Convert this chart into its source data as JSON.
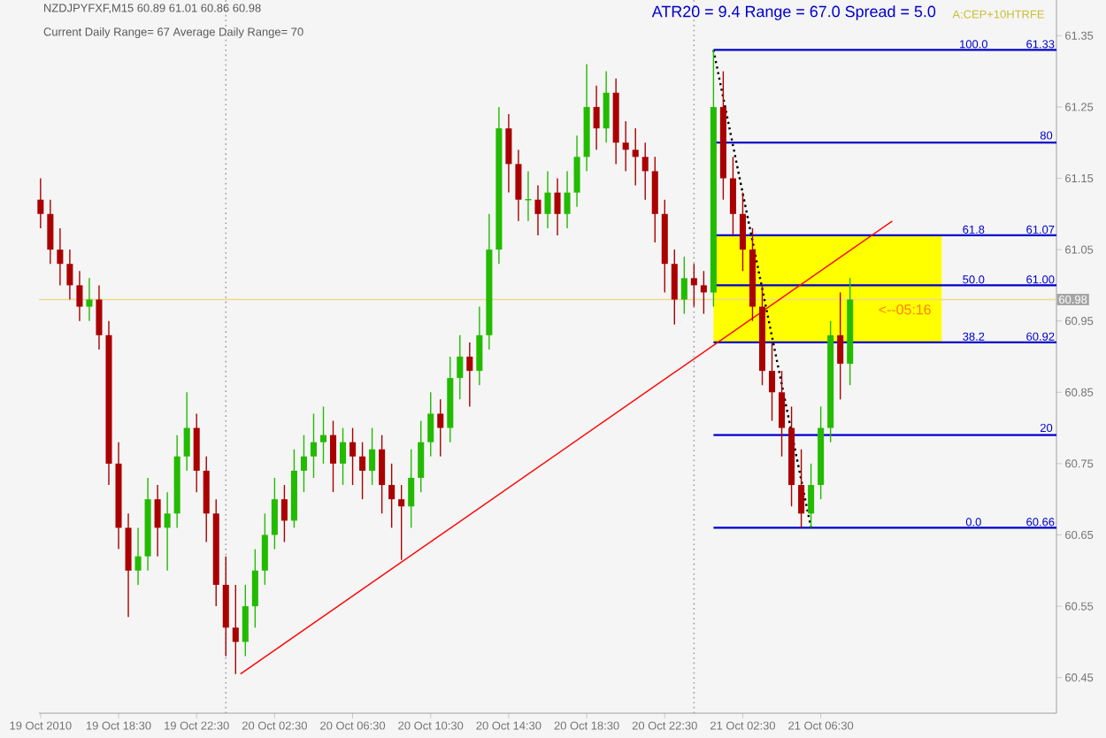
{
  "chart_data": {
    "type": "candlestick",
    "title": "NZDJPYFXF,M15  60.89 61.01 60.86 60.98",
    "subtitle": "Current Daily Range= 67   Average Daily Range= 70",
    "x": [
      "2010-10-19T14:30",
      "2010-10-19T15:00",
      "2010-10-19T15:30",
      "2010-10-19T16:00",
      "2010-10-19T16:30",
      "2010-10-19T17:00",
      "2010-10-19T17:30",
      "2010-10-19T18:00",
      "2010-10-19T18:30",
      "2010-10-19T19:00",
      "2010-10-19T19:30",
      "2010-10-19T20:00",
      "2010-10-19T20:30",
      "2010-10-19T21:00",
      "2010-10-19T21:30",
      "2010-10-19T22:00",
      "2010-10-19T22:30",
      "2010-10-19T23:00",
      "2010-10-19T23:30",
      "2010-10-20T00:00",
      "2010-10-20T00:30",
      "2010-10-20T01:00",
      "2010-10-20T01:30",
      "2010-10-20T02:00",
      "2010-10-20T02:30",
      "2010-10-20T03:00",
      "2010-10-20T03:30",
      "2010-10-20T04:00",
      "2010-10-20T04:30",
      "2010-10-20T05:00",
      "2010-10-20T05:30",
      "2010-10-20T06:00",
      "2010-10-20T06:30",
      "2010-10-20T07:00",
      "2010-10-20T07:30",
      "2010-10-20T08:00",
      "2010-10-20T08:30",
      "2010-10-20T09:00",
      "2010-10-20T09:30",
      "2010-10-20T10:00",
      "2010-10-20T10:30",
      "2010-10-20T11:00",
      "2010-10-20T11:30",
      "2010-10-20T12:00",
      "2010-10-20T12:30",
      "2010-10-20T13:00",
      "2010-10-20T13:30",
      "2010-10-20T14:00",
      "2010-10-20T14:30",
      "2010-10-20T15:00",
      "2010-10-20T15:30",
      "2010-10-20T16:00",
      "2010-10-20T16:30",
      "2010-10-20T17:00",
      "2010-10-20T17:30",
      "2010-10-20T18:00",
      "2010-10-20T18:30",
      "2010-10-20T19:00",
      "2010-10-20T19:30",
      "2010-10-20T20:00",
      "2010-10-20T20:30",
      "2010-10-20T21:00",
      "2010-10-20T21:30",
      "2010-10-20T22:00",
      "2010-10-20T22:30",
      "2010-10-20T23:00",
      "2010-10-20T23:30",
      "2010-10-21T00:00",
      "2010-10-21T00:30",
      "2010-10-21T01:00",
      "2010-10-21T01:30",
      "2010-10-21T02:00",
      "2010-10-21T02:30",
      "2010-10-21T03:00",
      "2010-10-21T03:30",
      "2010-10-21T04:00",
      "2010-10-21T04:30",
      "2010-10-21T05:00",
      "2010-10-21T05:30",
      "2010-10-21T06:00",
      "2010-10-21T06:30",
      "2010-10-21T07:00",
      "2010-10-21T07:30",
      "2010-10-21T08:00"
    ],
    "ohlc": [
      [
        61.12,
        61.15,
        61.08,
        61.1
      ],
      [
        61.1,
        61.12,
        61.03,
        61.05
      ],
      [
        61.05,
        61.08,
        61.0,
        61.03
      ],
      [
        61.03,
        61.05,
        60.98,
        61.0
      ],
      [
        61.0,
        61.02,
        60.95,
        60.97
      ],
      [
        60.97,
        61.01,
        60.95,
        60.98
      ],
      [
        60.98,
        61.0,
        60.91,
        60.93
      ],
      [
        60.93,
        60.95,
        60.72,
        60.75
      ],
      [
        60.75,
        60.78,
        60.63,
        60.66
      ],
      [
        60.66,
        60.68,
        60.535,
        60.6
      ],
      [
        60.6,
        60.66,
        60.58,
        60.62
      ],
      [
        60.62,
        60.73,
        60.6,
        60.7
      ],
      [
        60.7,
        60.72,
        60.62,
        60.66
      ],
      [
        60.66,
        60.71,
        60.6,
        60.68
      ],
      [
        60.68,
        60.79,
        60.66,
        60.76
      ],
      [
        60.76,
        60.85,
        60.74,
        60.8
      ],
      [
        60.8,
        60.82,
        60.71,
        60.74
      ],
      [
        60.74,
        60.76,
        60.64,
        60.68
      ],
      [
        60.68,
        60.7,
        60.55,
        60.58
      ],
      [
        60.58,
        60.62,
        60.48,
        60.52
      ],
      [
        60.52,
        60.58,
        60.455,
        60.5
      ],
      [
        60.5,
        60.58,
        60.48,
        60.55
      ],
      [
        60.55,
        60.63,
        60.52,
        60.6
      ],
      [
        60.6,
        60.68,
        60.58,
        60.65
      ],
      [
        60.65,
        60.73,
        60.63,
        60.7
      ],
      [
        60.7,
        60.72,
        60.64,
        60.67
      ],
      [
        60.67,
        60.77,
        60.66,
        60.74
      ],
      [
        60.74,
        60.79,
        60.71,
        60.76
      ],
      [
        60.76,
        60.82,
        60.73,
        60.78
      ],
      [
        60.78,
        60.83,
        60.75,
        60.79
      ],
      [
        60.79,
        60.81,
        60.71,
        60.75
      ],
      [
        60.75,
        60.8,
        60.72,
        60.78
      ],
      [
        60.78,
        60.8,
        60.72,
        60.76
      ],
      [
        60.76,
        60.78,
        60.7,
        60.74
      ],
      [
        60.74,
        60.8,
        60.72,
        60.77
      ],
      [
        60.77,
        60.79,
        60.68,
        60.72
      ],
      [
        60.72,
        60.75,
        60.66,
        60.7
      ],
      [
        60.7,
        60.72,
        60.615,
        60.69
      ],
      [
        60.69,
        60.77,
        60.66,
        60.73
      ],
      [
        60.73,
        60.81,
        60.71,
        60.78
      ],
      [
        60.78,
        60.85,
        60.76,
        60.82
      ],
      [
        60.82,
        60.84,
        60.76,
        60.8
      ],
      [
        60.8,
        60.9,
        60.78,
        60.87
      ],
      [
        60.87,
        60.93,
        60.84,
        60.9
      ],
      [
        60.9,
        60.92,
        60.83,
        60.88
      ],
      [
        60.88,
        60.97,
        60.86,
        60.93
      ],
      [
        60.93,
        61.1,
        60.91,
        61.05
      ],
      [
        61.05,
        61.25,
        61.03,
        61.22
      ],
      [
        61.22,
        61.24,
        61.13,
        61.17
      ],
      [
        61.17,
        61.19,
        61.09,
        61.12
      ],
      [
        61.12,
        61.16,
        61.09,
        61.12
      ],
      [
        61.12,
        61.14,
        61.07,
        61.1
      ],
      [
        61.1,
        61.16,
        61.08,
        61.13
      ],
      [
        61.13,
        61.15,
        61.07,
        61.1
      ],
      [
        61.1,
        61.16,
        61.08,
        61.13
      ],
      [
        61.13,
        61.21,
        61.11,
        61.18
      ],
      [
        61.18,
        61.31,
        61.16,
        61.25
      ],
      [
        61.25,
        61.28,
        61.19,
        61.22
      ],
      [
        61.22,
        61.3,
        61.2,
        61.27
      ],
      [
        61.27,
        61.29,
        61.17,
        61.2
      ],
      [
        61.2,
        61.23,
        61.16,
        61.19
      ],
      [
        61.19,
        61.22,
        61.14,
        61.18
      ],
      [
        61.18,
        61.2,
        61.12,
        61.16
      ],
      [
        61.16,
        61.18,
        61.06,
        61.1
      ],
      [
        61.1,
        61.12,
        60.99,
        61.03
      ],
      [
        61.03,
        61.05,
        60.945,
        60.98
      ],
      [
        60.98,
        61.04,
        60.96,
        61.01
      ],
      [
        61.01,
        61.03,
        60.97,
        61.0
      ],
      [
        61.0,
        61.02,
        60.96,
        60.99
      ],
      [
        60.99,
        61.33,
        60.97,
        61.25
      ],
      [
        61.25,
        61.3,
        61.12,
        61.15
      ],
      [
        61.15,
        61.18,
        61.07,
        61.1
      ],
      [
        61.1,
        61.13,
        61.02,
        61.05
      ],
      [
        61.05,
        61.08,
        60.95,
        60.97
      ],
      [
        60.97,
        61.0,
        60.86,
        60.88
      ],
      [
        60.88,
        60.92,
        60.81,
        60.85
      ],
      [
        60.85,
        60.88,
        60.76,
        60.8
      ],
      [
        60.8,
        60.83,
        60.69,
        60.72
      ],
      [
        60.72,
        60.77,
        60.66,
        60.68
      ],
      [
        60.68,
        60.75,
        60.66,
        60.72
      ],
      [
        60.72,
        60.83,
        60.7,
        60.8
      ],
      [
        60.8,
        60.95,
        60.78,
        60.93
      ],
      [
        60.93,
        60.99,
        60.84,
        60.89
      ],
      [
        60.89,
        61.01,
        60.86,
        60.98
      ]
    ],
    "colors": [
      "#aa0000",
      "#aa0000",
      "#aa0000",
      "#aa0000",
      "#aa0000",
      "#22bb00",
      "#aa0000",
      "#aa0000",
      "#aa0000",
      "#aa0000",
      "#22bb00",
      "#22bb00",
      "#aa0000",
      "#22bb00",
      "#22bb00",
      "#22bb00",
      "#aa0000",
      "#aa0000",
      "#aa0000",
      "#aa0000",
      "#aa0000",
      "#22bb00",
      "#22bb00",
      "#22bb00",
      "#22bb00",
      "#aa0000",
      "#22bb00",
      "#22bb00",
      "#22bb00",
      "#22bb00",
      "#aa0000",
      "#22bb00",
      "#aa0000",
      "#aa0000",
      "#22bb00",
      "#aa0000",
      "#aa0000",
      "#aa0000",
      "#22bb00",
      "#22bb00",
      "#22bb00",
      "#aa0000",
      "#22bb00",
      "#22bb00",
      "#aa0000",
      "#22bb00",
      "#22bb00",
      "#22bb00",
      "#aa0000",
      "#aa0000",
      "#22bb00",
      "#aa0000",
      "#22bb00",
      "#aa0000",
      "#22bb00",
      "#22bb00",
      "#22bb00",
      "#aa0000",
      "#22bb00",
      "#aa0000",
      "#aa0000",
      "#aa0000",
      "#aa0000",
      "#aa0000",
      "#aa0000",
      "#aa0000",
      "#22bb00",
      "#aa0000",
      "#aa0000",
      "#22bb00",
      "#aa0000",
      "#aa0000",
      "#aa0000",
      "#aa0000",
      "#aa0000",
      "#aa0000",
      "#aa0000",
      "#aa0000",
      "#aa0000",
      "#22bb00",
      "#22bb00",
      "#22bb00",
      "#aa0000",
      "#22bb00"
    ],
    "series": [
      {
        "type": "line",
        "color": "#ff0000",
        "x": [
          "2010-10-20T00:45",
          "2010-10-21T10:10"
        ],
        "values": [
          60.455,
          61.09
        ]
      },
      {
        "type": "line",
        "color": "#000000",
        "line_style": "dotted",
        "x": [
          "2010-10-21T01:00",
          "2010-10-21T06:00"
        ],
        "values": [
          61.33,
          60.66
        ]
      }
    ],
    "xlim": [
      "2010-10-19T14:25",
      "2010-10-21T18:35"
    ],
    "xticks": [
      {
        "value": "2010-10-19T14:30",
        "label": "19 Oct 2010"
      },
      {
        "value": "2010-10-19T18:30",
        "label": "19 Oct 18:30"
      },
      {
        "value": "2010-10-19T22:30",
        "label": "19 Oct 22:30"
      },
      {
        "value": "2010-10-20T02:30",
        "label": "20 Oct 02:30"
      },
      {
        "value": "2010-10-20T06:30",
        "label": "20 Oct 06:30"
      },
      {
        "value": "2010-10-20T10:30",
        "label": "20 Oct 10:30"
      },
      {
        "value": "2010-10-20T14:30",
        "label": "20 Oct 14:30"
      },
      {
        "value": "2010-10-20T18:30",
        "label": "20 Oct 18:30"
      },
      {
        "value": "2010-10-20T22:30",
        "label": "20 Oct 22:30"
      },
      {
        "value": "2010-10-21T02:30",
        "label": "21 Oct 02:30"
      },
      {
        "value": "2010-10-21T06:30",
        "label": "21 Oct 06:30"
      }
    ],
    "ylim": [
      60.4,
      61.4
    ],
    "yticks": [
      60.45,
      60.55,
      60.65,
      60.75,
      60.85,
      60.95,
      61.05,
      61.15,
      61.25,
      61.35
    ],
    "ref_lines": [
      {
        "axis": "y",
        "value": 61.33,
        "label": "61.33",
        "color": "#0000cc"
      },
      {
        "axis": "y",
        "value": 61.2,
        "color": "#0000cc"
      },
      {
        "axis": "y",
        "value": 61.07,
        "label": "61.07",
        "color": "#0000cc"
      },
      {
        "axis": "y",
        "value": 61.0,
        "label": "61.00",
        "color": "#0000cc"
      },
      {
        "axis": "y",
        "value": 60.92,
        "label": "60.92",
        "color": "#0000cc"
      },
      {
        "axis": "y",
        "value": 60.79,
        "color": "#0000cc"
      },
      {
        "axis": "y",
        "value": 60.66,
        "label": "60.66",
        "color": "#0000cc"
      },
      {
        "axis": "y",
        "value": 60.98,
        "label": "60.98",
        "color": "#f0d890"
      },
      {
        "axis": "x",
        "value": "2010-10-20T00:00",
        "color": "#a898a8",
        "line_style": "dotted"
      },
      {
        "axis": "x",
        "value": "2010-10-21T00:00",
        "color": "#a898a8",
        "line_style": "dotted"
      }
    ],
    "bands": [
      {
        "axis": "y",
        "from": 60.92,
        "to": 61.07,
        "color": "#ffff00"
      }
    ],
    "annotations": [
      "ATR20 = 9.4 Range = 67.0 Spread = 5.0",
      "A:CEP+10HTRFE",
      "<--05:16",
      "80",
      "20",
      {
        "text": "100.0",
        "x": "2010-10-21T14:20",
        "y": 61.33
      },
      {
        "text": "61.8",
        "x": "2010-10-21T14:20",
        "y": 61.07
      },
      {
        "text": "50.0",
        "x": "2010-10-21T14:20",
        "y": 61.0
      },
      {
        "text": "38.2",
        "x": "2010-10-21T14:20",
        "y": 60.92
      },
      {
        "text": "0.0",
        "x": "2010-10-21T14:20",
        "y": 60.66
      }
    ]
  }
}
